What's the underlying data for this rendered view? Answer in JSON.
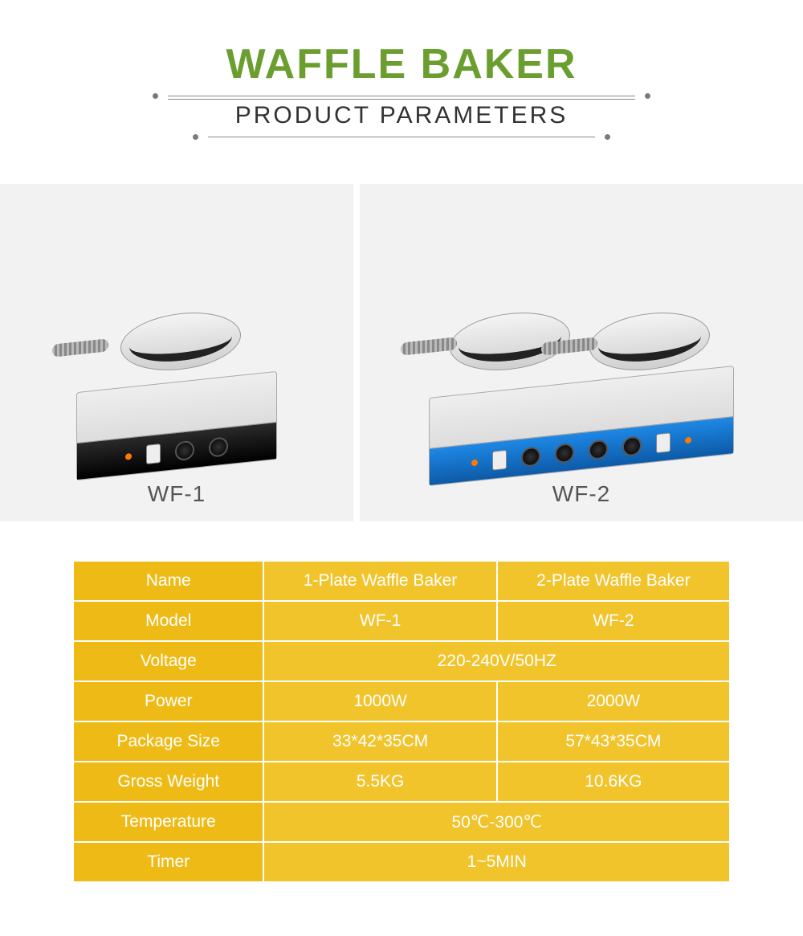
{
  "header": {
    "title": "WAFFLE BAKER",
    "subtitle": "PRODUCT PARAMETERS",
    "title_color": "#6a9e2f"
  },
  "products": {
    "left_label": "WF-1",
    "right_label": "WF-2",
    "card_bg": "#f2f2f2",
    "panel_colors": {
      "wf1": "#000000",
      "wf2": "#1e88e5"
    }
  },
  "spec_table": {
    "label_bg": "#eebb16",
    "value_bg": "#f2c42c",
    "border_color": "#ffffff",
    "text_color": "#ffffff",
    "rows": [
      {
        "label": "Name",
        "v1": "1-Plate Waffle Baker",
        "v2": "2-Plate Waffle Baker",
        "merged": false
      },
      {
        "label": "Model",
        "v1": "WF-1",
        "v2": "WF-2",
        "merged": false
      },
      {
        "label": "Voltage",
        "v": "220-240V/50HZ",
        "merged": true
      },
      {
        "label": "Power",
        "v1": "1000W",
        "v2": "2000W",
        "merged": false
      },
      {
        "label": "Package Size",
        "v1": "33*42*35CM",
        "v2": "57*43*35CM",
        "merged": false
      },
      {
        "label": "Gross Weight",
        "v1": "5.5KG",
        "v2": "10.6KG",
        "merged": false
      },
      {
        "label": "Temperature",
        "v": "50℃-300℃",
        "merged": true
      },
      {
        "label": "Timer",
        "v": "1~5MIN",
        "merged": true
      }
    ]
  }
}
